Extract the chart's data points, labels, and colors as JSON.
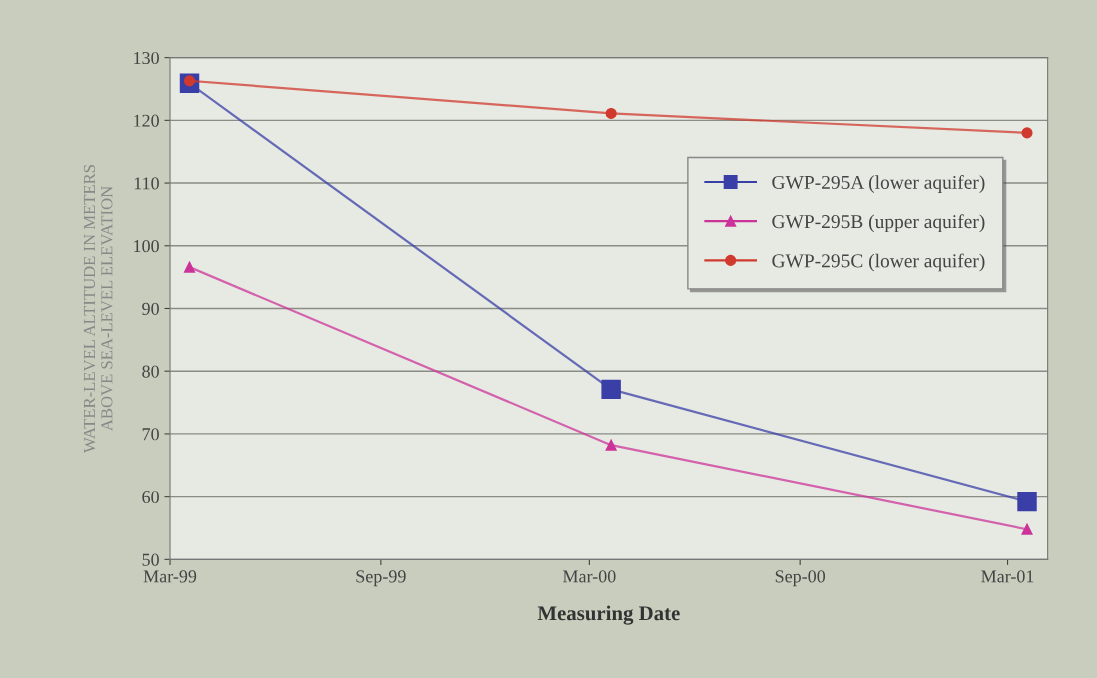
{
  "chart_data": {
    "type": "line",
    "xlabel": "Measuring Date",
    "ylabel": "WATER-LEVEL ALTITUDE IN METERS\nABOVE SEA-LEVEL ELEVATION",
    "xlim": [
      "1999-03-01",
      "2001-04-05"
    ],
    "xticks": [
      {
        "value": "1999-03-01",
        "label": "Mar-99"
      },
      {
        "value": "1999-09-01",
        "label": "Sep-99"
      },
      {
        "value": "2000-03-01",
        "label": "Mar-00"
      },
      {
        "value": "2000-09-01",
        "label": "Sep-00"
      },
      {
        "value": "2001-03-01",
        "label": "Mar-01"
      }
    ],
    "ylim": [
      50,
      130
    ],
    "yticks": [
      50,
      60,
      70,
      80,
      90,
      100,
      110,
      120,
      130
    ],
    "grid": "y",
    "legend": "right",
    "series": [
      {
        "name": "GWP-295A (lower aquifer)",
        "color": "#3a3fa8",
        "marker": "square",
        "x": [
          "1999-03-18",
          "2000-03-20",
          "2001-03-18"
        ],
        "values": [
          125.9,
          77.1,
          59.2
        ]
      },
      {
        "name": "GWP-295B (upper aquifer)",
        "color": "#cc3399",
        "marker": "triangle",
        "x": [
          "1999-03-18",
          "2000-03-20",
          "2001-03-18"
        ],
        "values": [
          96.6,
          68.2,
          54.8
        ]
      },
      {
        "name": "GWP-295C (lower aquifer)",
        "color": "#d03a2e",
        "marker": "circle",
        "x": [
          "1999-03-18",
          "2000-03-20",
          "2001-03-18"
        ],
        "values": [
          126.3,
          121.1,
          118.0
        ]
      }
    ]
  }
}
